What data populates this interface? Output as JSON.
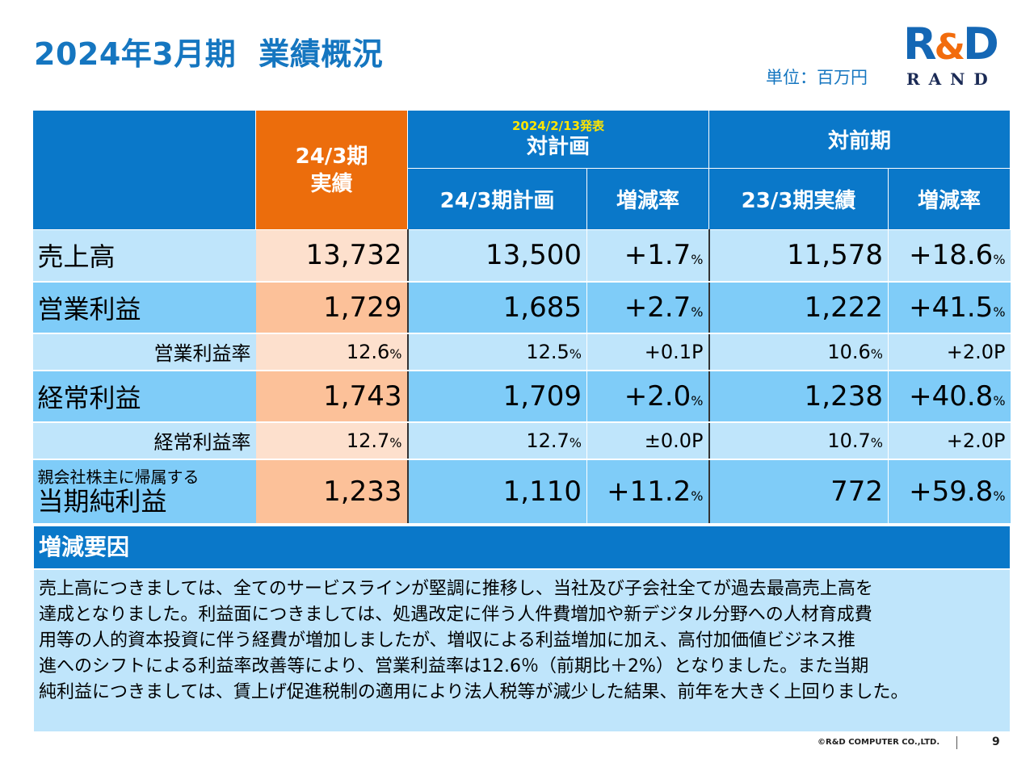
{
  "header": {
    "title_part1": "2024年3月期",
    "title_part2": "業績概況",
    "unit": "単位：百万円",
    "logo_rd": "R",
    "logo_amp": "&",
    "logo_d": "D",
    "logo_rand": "RAND"
  },
  "table": {
    "col_actual": "24/3期",
    "col_actual2": "実績",
    "vs_plan_note": "2024/2/13発表",
    "vs_plan": "対計画",
    "vs_prev": "対前期",
    "plan_col": "24/3期計画",
    "change_col": "増減率",
    "prev_col": "23/3期実績",
    "change_col2": "増減率",
    "pct": "%",
    "rows": [
      {
        "label": "売上高",
        "actual": "13,732",
        "plan": "13,500",
        "plan_chg": "+1.7",
        "prev": "11,578",
        "prev_chg": "+18.6"
      },
      {
        "label": "営業利益",
        "actual": "1,729",
        "plan": "1,685",
        "plan_chg": "+2.7",
        "prev": "1,222",
        "prev_chg": "+41.5"
      },
      {
        "label": "営業利益率",
        "actual": "12.6",
        "plan": "12.5",
        "plan_chg": "+0.1P",
        "prev": "10.6",
        "prev_chg": "+2.0P"
      },
      {
        "label": "経常利益",
        "actual": "1,743",
        "plan": "1,709",
        "plan_chg": "+2.0",
        "prev": "1,238",
        "prev_chg": "+40.8"
      },
      {
        "label": "経常利益率",
        "actual": "12.7",
        "plan": "12.7",
        "plan_chg": "±0.0P",
        "prev": "10.7",
        "prev_chg": "+2.0P"
      },
      {
        "label1": "親会社株主に帰属する",
        "label2": "当期純利益",
        "actual": "1,233",
        "plan": "1,110",
        "plan_chg": "+11.2",
        "prev": "772",
        "prev_chg": "+59.8"
      }
    ]
  },
  "factors": {
    "heading": "増減要因",
    "lines": [
      "売上高につきましては、全てのサービスラインが堅調に推移し、当社及び子会社全てが過去最高売上高を",
      "達成となりました。利益面につきましては、処遇改定に伴う人件費増加や新デジタル分野への人材育成費",
      "用等の人的資本投資に伴う経費が増加しましたが、増収による利益増加に加え、高付加価値ビジネス推",
      "進へのシフトによる利益率改善等により、営業利益率は12.6％（前期比＋2%）となりました。また当期",
      "純利益につきましては、賃上げ促進税制の適用により法人税等が減少した結果、前年を大きく上回りました。"
    ]
  },
  "footer": {
    "copyright": "©R&D COMPUTER CO.,LTD.",
    "page": "9"
  }
}
